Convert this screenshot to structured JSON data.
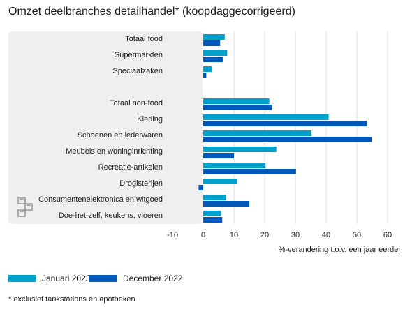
{
  "chart_data": {
    "type": "bar",
    "orientation": "horizontal",
    "title": "Omzet deelbranches detailhandel* (koopdaggecorrigeerd)",
    "xlabel": "%-verandering t.o.v. een jaar eerder",
    "xlim": [
      -10,
      60
    ],
    "xticks": [
      -10,
      0,
      10,
      20,
      30,
      40,
      50,
      60
    ],
    "grid": true,
    "legend_placement": "bottom-left",
    "categories": [
      "Totaal food",
      "Supermarkten",
      "Speciaalzaken",
      "",
      "Totaal non-food",
      "Kleding",
      "Schoenen en lederwaren",
      "Meubels en woninginrichting",
      "Recreatie-artikelen",
      "Drogisterijen",
      "Consumentenelektronica en witgoed",
      "Doe-het-zelf, keukens, vloeren"
    ],
    "series": [
      {
        "name": "Januari 2023",
        "color": "#00a1cd",
        "values": [
          7,
          7.8,
          2.8,
          null,
          21.5,
          40.8,
          35.2,
          23.8,
          20.3,
          11,
          7.5,
          5.8
        ]
      },
      {
        "name": "December 2022",
        "color": "#0058b8",
        "values": [
          5.5,
          6.5,
          1,
          null,
          22.3,
          53.3,
          54.8,
          10,
          30.2,
          -1.5,
          15,
          6.2
        ]
      }
    ],
    "footnote": "* exclusief tankstations en apotheken"
  }
}
